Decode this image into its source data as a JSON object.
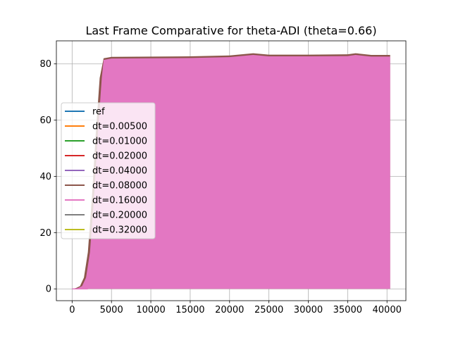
{
  "chart_data": {
    "type": "line",
    "title": "Last Frame Comparative for theta-ADI (theta=0.66)",
    "xlabel": "",
    "ylabel": "",
    "xlim": [
      -2000,
      42400
    ],
    "ylim": [
      -4.2,
      88.2
    ],
    "xticks": [
      0,
      5000,
      10000,
      15000,
      20000,
      25000,
      30000,
      35000,
      40000
    ],
    "xtick_labels": [
      "0",
      "5000",
      "10000",
      "15000",
      "20000",
      "25000",
      "30000",
      "35000",
      "40000"
    ],
    "yticks": [
      0,
      20,
      40,
      60,
      80
    ],
    "ytick_labels": [
      "0",
      "20",
      "40",
      "60",
      "80"
    ],
    "grid": true,
    "legend_position": "center-left",
    "envelope_note_x": [
      0,
      500,
      1000,
      1500,
      2000,
      2500,
      3000,
      3500,
      4000,
      5000,
      10000,
      15000,
      20000,
      23000,
      25000,
      30000,
      35000,
      36000,
      38000,
      40400
    ],
    "envelope_upper": [
      0.0,
      0.3,
      1.0,
      4.0,
      13.0,
      32.0,
      55.0,
      75.0,
      82.0,
      82.5,
      82.6,
      82.7,
      83.0,
      83.8,
      83.3,
      83.3,
      83.4,
      83.8,
      83.2,
      83.2
    ],
    "envelope_lower": [
      0.0,
      0,
      0,
      0,
      0,
      0,
      0,
      0,
      0,
      0,
      0,
      0,
      0,
      0,
      0,
      0,
      0,
      0,
      0,
      0
    ],
    "series": [
      {
        "name": "ref",
        "color": "#1f77b4"
      },
      {
        "name": "dt=0.00500",
        "color": "#ff7f0e"
      },
      {
        "name": "dt=0.01000",
        "color": "#2ca02c"
      },
      {
        "name": "dt=0.02000",
        "color": "#d62728"
      },
      {
        "name": "dt=0.04000",
        "color": "#9467bd"
      },
      {
        "name": "dt=0.08000",
        "color": "#8c564b"
      },
      {
        "name": "dt=0.16000",
        "color": "#e377c2"
      },
      {
        "name": "dt=0.20000",
        "color": "#7f7f7f"
      },
      {
        "name": "dt=0.32000",
        "color": "#bcbd22"
      }
    ]
  }
}
